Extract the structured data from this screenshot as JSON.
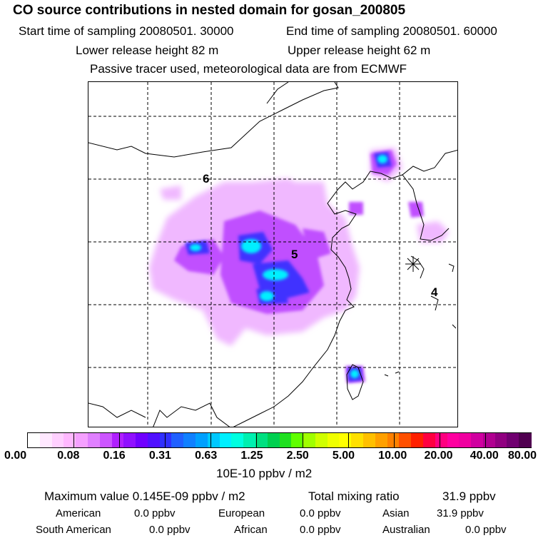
{
  "header": {
    "title": "CO  source contributions in nested domain for gosan_200805",
    "start_time": "Start time of sampling 20080501. 30000",
    "end_time": "End time of sampling 20080501. 60000",
    "lower_height": "Lower release height   82 m",
    "upper_height": "Upper release height   62 m",
    "tracer_note": "Passive tracer used, meteorological data are from ECMWF"
  },
  "map": {
    "region_labels": [
      "6",
      "5",
      "4"
    ],
    "receptor_marker": "asterisk-receptor-icon"
  },
  "colorbar": {
    "colors": [
      "#ffffff",
      "#ffe8ff",
      "#ffd0ff",
      "#ffb8ff",
      "#f5a0ff",
      "#e080ff",
      "#cc55ff",
      "#b020ff",
      "#9010ff",
      "#7000ff",
      "#5010ff",
      "#3030ff",
      "#2060ff",
      "#1080ff",
      "#00a0ff",
      "#00c8ff",
      "#00f0ff",
      "#00ffe0",
      "#00f0b0",
      "#00e080",
      "#00d050",
      "#20e020",
      "#60ff00",
      "#a0ff00",
      "#d0ff00",
      "#f0ff00",
      "#ffff00",
      "#ffe000",
      "#ffc000",
      "#ffa000",
      "#ff8000",
      "#ff5000",
      "#ff2000",
      "#ff0040",
      "#ff0080",
      "#ff00a0",
      "#f000a0",
      "#d000a0",
      "#b00090",
      "#900080",
      "#700070",
      "#500050"
    ],
    "tick_labels": [
      "0.00",
      "0.08",
      "0.16",
      "0.31",
      "0.63",
      "1.25",
      "2.50",
      "5.00",
      "10.00",
      "20.00",
      "40.00",
      "80.00"
    ],
    "unit": "10E-10 ppbv / m2"
  },
  "summary": {
    "max_value": "Maximum value  0.145E-09 ppbv / m2",
    "total_label": "Total mixing ratio",
    "total_value": "31.9 ppbv",
    "regions": [
      {
        "name": "American",
        "value": "0.0 ppbv"
      },
      {
        "name": "European",
        "value": "0.0 ppbv"
      },
      {
        "name": "Asian",
        "value": "31.9 ppbv"
      },
      {
        "name": "South American",
        "value": "0.0 ppbv"
      },
      {
        "name": "African",
        "value": "0.0 ppbv"
      },
      {
        "name": "Australian",
        "value": "0.0 ppbv"
      }
    ]
  }
}
